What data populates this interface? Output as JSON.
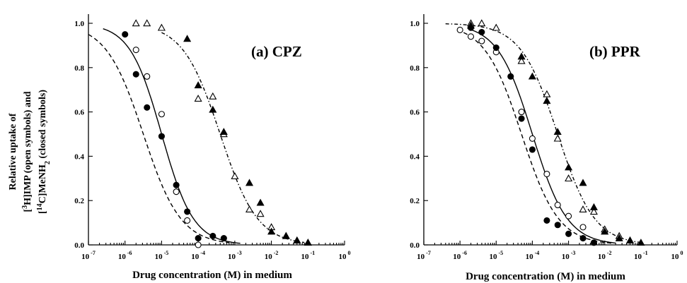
{
  "y_axis_label": {
    "line1": "Relative uptake of",
    "line2_parts": [
      {
        "t": "[",
        "sup": false
      },
      {
        "t": "3",
        "sup": true
      },
      {
        "t": "H]IMP (open symbols) and",
        "sup": false
      }
    ],
    "line3_parts": [
      {
        "t": "[",
        "sup": false
      },
      {
        "t": "14",
        "sup": true
      },
      {
        "t": "C]MeNH",
        "sup": false
      },
      {
        "t": "2",
        "sub": true
      },
      {
        "t": " (closed symbols)",
        "sup": false
      }
    ]
  },
  "chart_data": [
    {
      "type": "scatter",
      "panel_label": "(a) CPZ",
      "xlabel": "Drug concentration (M)  in medium",
      "xscale": "log",
      "xlim": [
        -7,
        0
      ],
      "ylim": [
        0,
        1.0
      ],
      "x_tick_exponents": [
        -7,
        -6,
        -5,
        -4,
        -3,
        -2,
        -1,
        0
      ],
      "y_ticks": [
        "0.0",
        "0.2",
        "0.4",
        "0.6",
        "0.8",
        "1.0"
      ],
      "series": [
        {
          "marker": "open-circle",
          "points": [
            [
              -5.7,
              0.88
            ],
            [
              -5.4,
              0.76
            ],
            [
              -5.0,
              0.59
            ],
            [
              -4.6,
              0.24
            ],
            [
              -4.3,
              0.11
            ],
            [
              -4.0,
              0.0
            ]
          ]
        },
        {
          "marker": "closed-circle",
          "points": [
            [
              -6.0,
              0.95
            ],
            [
              -5.7,
              0.77
            ],
            [
              -5.4,
              0.62
            ],
            [
              -5.0,
              0.49
            ],
            [
              -4.6,
              0.27
            ],
            [
              -4.3,
              0.15
            ],
            [
              -4.0,
              0.03
            ],
            [
              -3.6,
              0.04
            ],
            [
              -3.3,
              0.03
            ]
          ]
        },
        {
          "marker": "open-triangle",
          "points": [
            [
              -5.7,
              1.0
            ],
            [
              -5.4,
              1.0
            ],
            [
              -5.0,
              0.98
            ],
            [
              -4.0,
              0.66
            ],
            [
              -3.6,
              0.67
            ],
            [
              -3.3,
              0.5
            ],
            [
              -3.0,
              0.31
            ],
            [
              -2.6,
              0.16
            ],
            [
              -2.3,
              0.14
            ],
            [
              -2.0,
              0.08
            ],
            [
              -1.6,
              0.04
            ],
            [
              -1.3,
              0.02
            ],
            [
              -1.0,
              0.01
            ]
          ]
        },
        {
          "marker": "closed-triangle",
          "points": [
            [
              -4.3,
              0.93
            ],
            [
              -4.0,
              0.72
            ],
            [
              -3.6,
              0.61
            ],
            [
              -3.3,
              0.51
            ],
            [
              -2.6,
              0.28
            ],
            [
              -2.3,
              0.19
            ],
            [
              -2.0,
              0.06
            ],
            [
              -1.6,
              0.04
            ],
            [
              -1.3,
              0.02
            ],
            [
              -1.0,
              0.01
            ]
          ]
        }
      ],
      "curves": [
        {
          "style": "dashed",
          "ic50_log": -5.5,
          "hill": 0.85,
          "x_range": [
            -7,
            -3.15
          ]
        },
        {
          "style": "solid",
          "ic50_log": -5.0,
          "hill": 1.0,
          "x_range": [
            -6.6,
            -2.85
          ]
        },
        {
          "style": "dash-dot",
          "ic50_log": -3.4,
          "hill": 0.85,
          "x_range": [
            -5.0,
            -1.1
          ]
        }
      ]
    },
    {
      "type": "scatter",
      "panel_label": "(b) PPR",
      "xlabel": "Drug concentration (M)  in medium",
      "xscale": "log",
      "xlim": [
        -7,
        0
      ],
      "ylim": [
        0,
        1.0
      ],
      "x_tick_exponents": [
        -7,
        -6,
        -5,
        -4,
        -3,
        -2,
        -1,
        0
      ],
      "y_ticks": [
        "0.0",
        "0.2",
        "0.4",
        "0.6",
        "0.8",
        "1.0"
      ],
      "series": [
        {
          "marker": "open-circle",
          "points": [
            [
              -6.0,
              0.97
            ],
            [
              -5.7,
              0.94
            ],
            [
              -5.4,
              0.92
            ],
            [
              -5.0,
              0.87
            ],
            [
              -4.3,
              0.6
            ],
            [
              -4.0,
              0.48
            ],
            [
              -3.6,
              0.32
            ],
            [
              -3.3,
              0.18
            ],
            [
              -3.0,
              0.13
            ],
            [
              -2.6,
              0.08
            ]
          ]
        },
        {
          "marker": "closed-circle",
          "points": [
            [
              -5.7,
              0.98
            ],
            [
              -5.4,
              0.96
            ],
            [
              -5.0,
              0.89
            ],
            [
              -4.6,
              0.76
            ],
            [
              -4.3,
              0.57
            ],
            [
              -4.0,
              0.43
            ],
            [
              -3.6,
              0.11
            ],
            [
              -3.3,
              0.09
            ],
            [
              -3.0,
              0.05
            ],
            [
              -2.6,
              0.03
            ],
            [
              -2.3,
              0.01
            ]
          ]
        },
        {
          "marker": "open-triangle",
          "points": [
            [
              -5.7,
              1.0
            ],
            [
              -5.4,
              1.0
            ],
            [
              -5.0,
              0.98
            ],
            [
              -4.3,
              0.83
            ],
            [
              -3.6,
              0.68
            ],
            [
              -3.3,
              0.48
            ],
            [
              -3.0,
              0.3
            ],
            [
              -2.6,
              0.16
            ],
            [
              -2.3,
              0.15
            ],
            [
              -2.0,
              0.07
            ],
            [
              -1.6,
              0.04
            ],
            [
              -1.3,
              0.02
            ]
          ]
        },
        {
          "marker": "closed-triangle",
          "points": [
            [
              -5.7,
              0.99
            ],
            [
              -4.3,
              0.85
            ],
            [
              -4.0,
              0.76
            ],
            [
              -3.6,
              0.65
            ],
            [
              -3.3,
              0.51
            ],
            [
              -3.0,
              0.35
            ],
            [
              -2.6,
              0.28
            ],
            [
              -2.3,
              0.17
            ],
            [
              -2.0,
              0.06
            ],
            [
              -1.6,
              0.03
            ],
            [
              -1.3,
              0.02
            ],
            [
              -1.0,
              0.01
            ]
          ]
        }
      ],
      "curves": [
        {
          "style": "dashed",
          "ic50_log": -4.3,
          "hill": 0.85,
          "x_range": [
            -5.9,
            -1.8
          ]
        },
        {
          "style": "solid",
          "ic50_log": -4.0,
          "hill": 0.9,
          "x_range": [
            -5.7,
            -1.7
          ]
        },
        {
          "style": "dash-dot",
          "ic50_log": -3.3,
          "hill": 0.85,
          "x_range": [
            -6.4,
            -0.95
          ]
        }
      ]
    }
  ]
}
